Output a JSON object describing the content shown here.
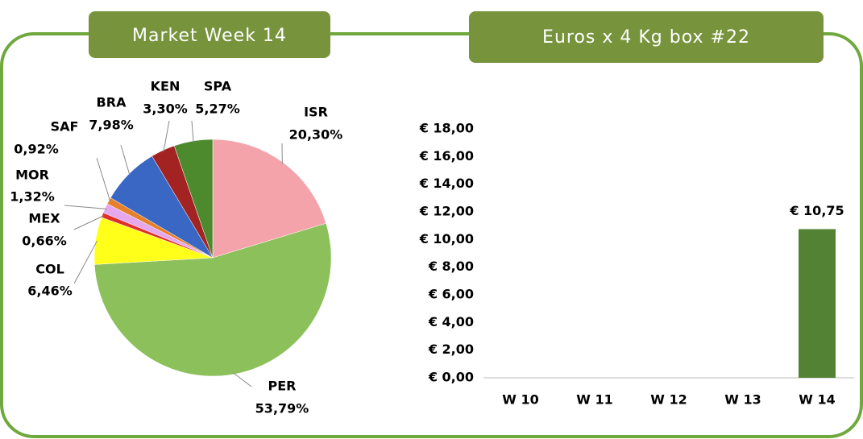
{
  "chart_data": [
    {
      "type": "pie",
      "title": "Market Week 14",
      "categories": [
        "ISR",
        "PER",
        "COL",
        "MEX",
        "MOR",
        "SAF",
        "BRA",
        "KEN",
        "SPA"
      ],
      "values": [
        20.3,
        53.79,
        6.46,
        0.66,
        1.32,
        0.92,
        7.98,
        3.3,
        5.27
      ],
      "value_labels": [
        "20,30%",
        "53,79%",
        "6,46%",
        "0,66%",
        "1,32%",
        "0,92%",
        "7,98%",
        "3,30%",
        "5,27%"
      ],
      "colors": [
        "#f4a3ab",
        "#8cc05a",
        "#ffff1a",
        "#e0302c",
        "#e6a8ec",
        "#e8802a",
        "#3a66c4",
        "#a32222",
        "#4d8a2e"
      ]
    },
    {
      "type": "bar",
      "title": "Euros x 4 Kg box #22",
      "categories": [
        "W 10",
        "W 11",
        "W 12",
        "W 13",
        "W 14"
      ],
      "values": [
        null,
        null,
        null,
        null,
        10.75
      ],
      "value_labels": [
        null,
        null,
        null,
        null,
        "€ 10,75"
      ],
      "color": "#548235",
      "ylim": [
        0,
        18
      ],
      "yticks": [
        {
          "value": 0,
          "label": "€ 0,00"
        },
        {
          "value": 2,
          "label": "€ 2,00"
        },
        {
          "value": 4,
          "label": "€ 4,00"
        },
        {
          "value": 6,
          "label": "€ 6,00"
        },
        {
          "value": 8,
          "label": "€ 8,00"
        },
        {
          "value": 10,
          "label": "€ 10,00"
        },
        {
          "value": 12,
          "label": "€ 12,00"
        },
        {
          "value": 14,
          "label": "€ 14,00"
        },
        {
          "value": 16,
          "label": "€ 16,00"
        },
        {
          "value": 18,
          "label": "€ 18,00"
        }
      ]
    }
  ]
}
